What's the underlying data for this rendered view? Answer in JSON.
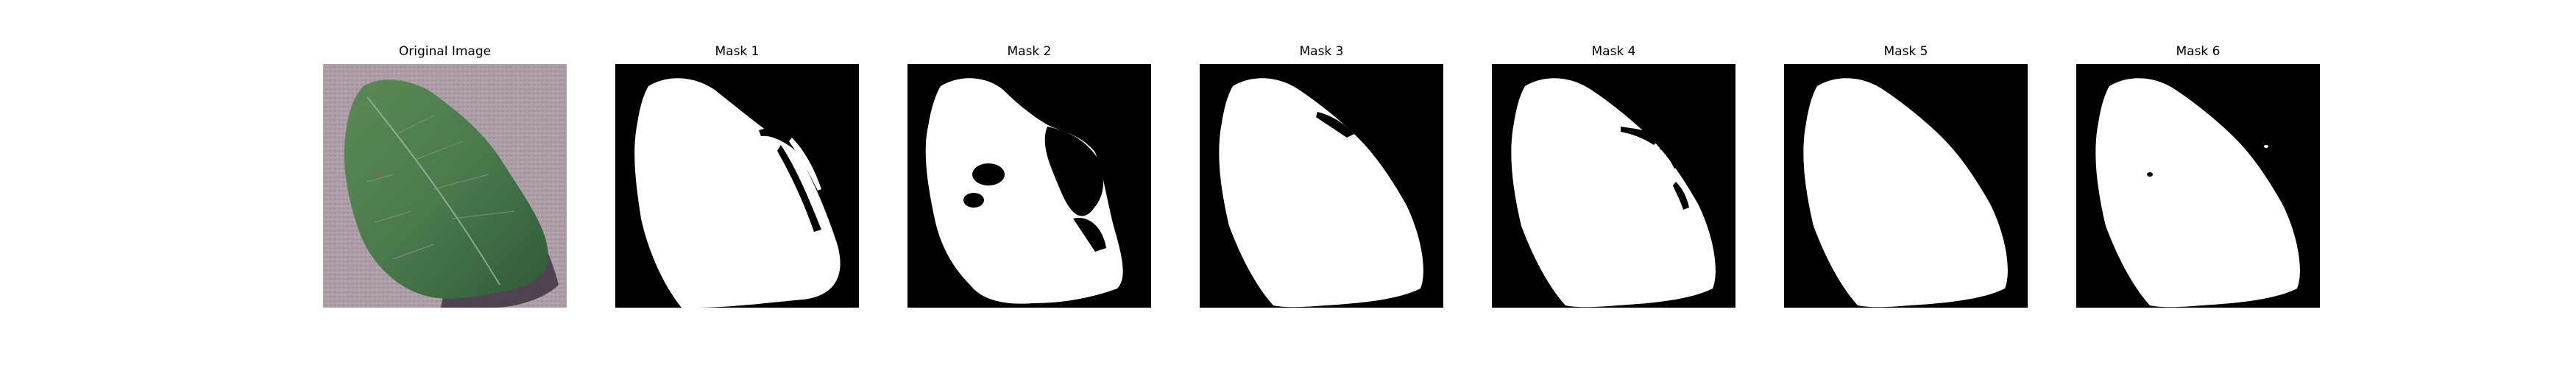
{
  "panels": [
    {
      "title": "Original Image",
      "kind": "photo"
    },
    {
      "title": "Mask 1",
      "kind": "mask"
    },
    {
      "title": "Mask 2",
      "kind": "mask"
    },
    {
      "title": "Mask 3",
      "kind": "mask"
    },
    {
      "title": "Mask 4",
      "kind": "mask"
    },
    {
      "title": "Mask 5",
      "kind": "mask"
    },
    {
      "title": "Mask 6",
      "kind": "mask"
    }
  ],
  "colors": {
    "mask_background": "#000000",
    "mask_foreground": "#ffffff",
    "photo_background": "#a99aa4",
    "leaf": "#4b7a4a",
    "leaf_dark": "#2f5a36",
    "shadow": "#3d3440"
  }
}
